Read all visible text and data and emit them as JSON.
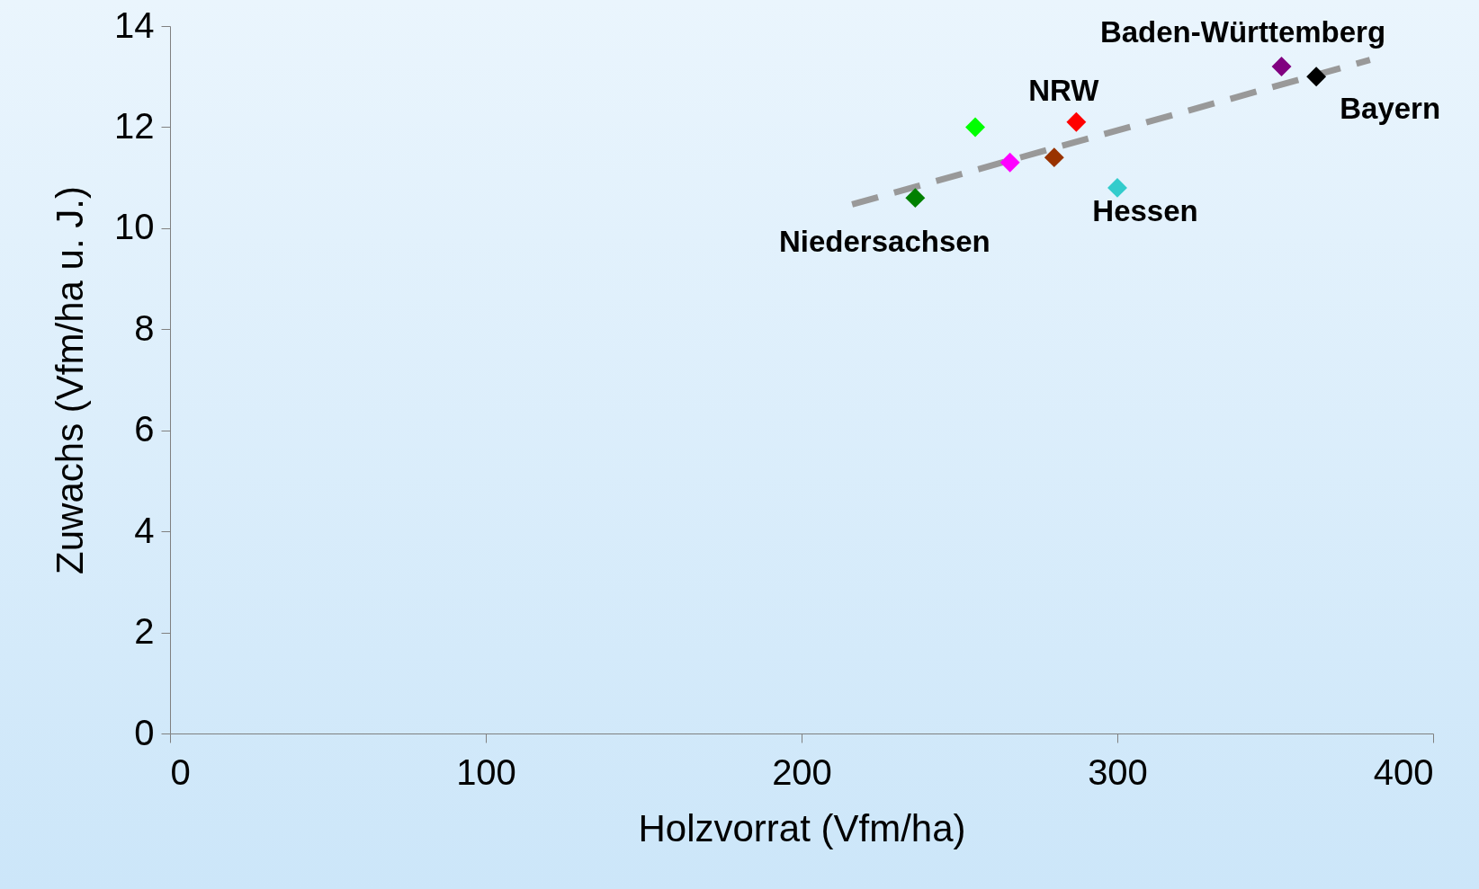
{
  "chart_data": {
    "type": "scatter",
    "xlabel": "Holzvorrat (Vfm/ha)",
    "ylabel": "Zuwachs (Vfm/ha u. J.)",
    "xlim": [
      0,
      400
    ],
    "xticks": [
      0,
      100,
      200,
      300,
      400
    ],
    "ylim": [
      0,
      14
    ],
    "yticks": [
      0,
      2,
      4,
      6,
      8,
      10,
      12,
      14
    ],
    "grid": false,
    "marker": "diamond",
    "series": [
      {
        "x": [
          236,
          255,
          266,
          280,
          287,
          300,
          352,
          363
        ],
        "values": [
          10.6,
          12.0,
          11.3,
          11.4,
          12.1,
          10.8,
          13.2,
          13.0
        ],
        "colors": [
          "#008000",
          "#00ff00",
          "#ff00ff",
          "#993300",
          "#ff0000",
          "#33cccc",
          "#800080",
          "#000000"
        ]
      },
      {
        "type": "line",
        "x": [
          216,
          380
        ],
        "values": [
          10.47,
          13.33
        ],
        "color": "#999999",
        "line_style": "dashed",
        "marker": "none"
      }
    ],
    "annotations": [
      {
        "text": "Niedersachsen",
        "x": 236,
        "y": 10.6
      },
      {
        "text": "NRW",
        "x": 287,
        "y": 12.1
      },
      {
        "text": "Baden-Württemberg",
        "x": 352,
        "y": 13.2
      },
      {
        "text": "Bayern",
        "x": 363,
        "y": 13.0
      },
      {
        "text": "Hessen",
        "x": 300,
        "y": 10.8
      }
    ]
  }
}
